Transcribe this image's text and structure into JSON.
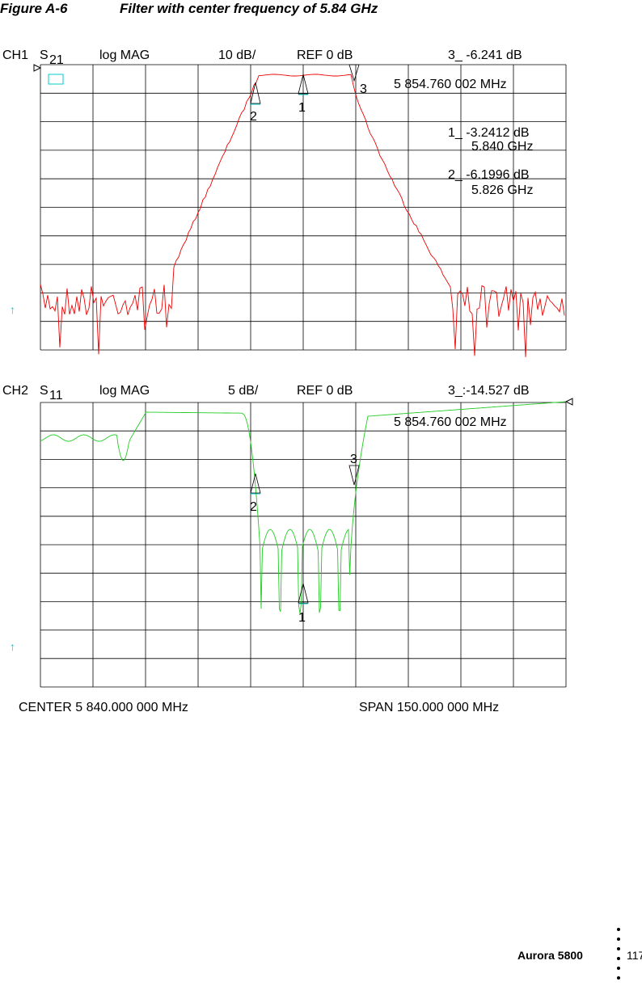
{
  "figure": {
    "number": "Figure A-6",
    "title": "Filter with center frequency of 5.84 GHz"
  },
  "plots": [
    {
      "channel": "CH1",
      "param": "S",
      "param_sub": "21",
      "format": "log MAG",
      "scale": "10 dB/",
      "ref": "REF 0 dB",
      "readout": "3_ -6.241  dB",
      "readout_freq": "5 854.760 002 MHz",
      "marker_list": [
        {
          "value": "1_ -3.2412 dB",
          "freq": "5.840 GHz"
        },
        {
          "value": "2_ -6.1996 dB",
          "freq": "5.826 GHz"
        }
      ],
      "markers": [
        "1",
        "2",
        "3"
      ]
    },
    {
      "channel": "CH2",
      "param": "S",
      "param_sub": "11",
      "format": "log MAG",
      "scale": "5 dB/",
      "ref": "REF 0 dB",
      "readout": "3_:-14.527 dB",
      "readout_freq": "5 854.760 002 MHz",
      "markers": [
        "1",
        "2",
        "3"
      ]
    }
  ],
  "center": "CENTER 5 840.000 000 MHz",
  "span": "SPAN  150.000 000 MHz",
  "footer": {
    "product": "Aurora 5800",
    "page": "117"
  }
}
